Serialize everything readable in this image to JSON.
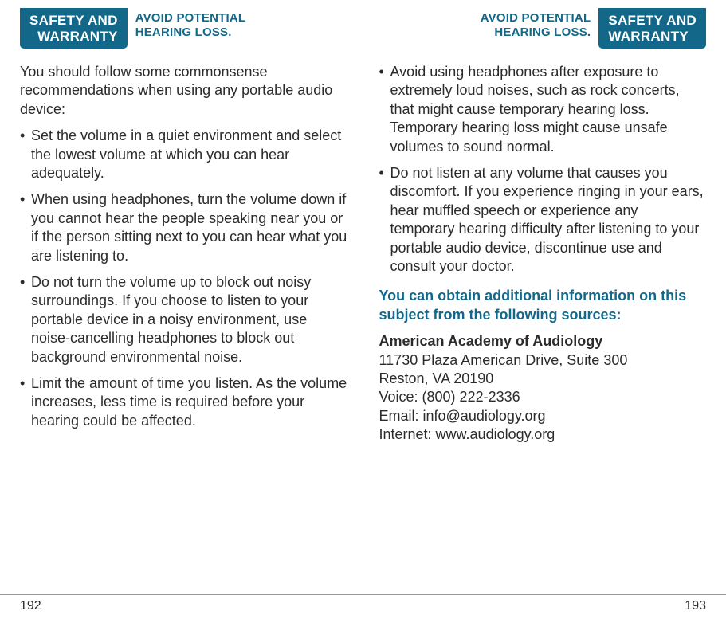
{
  "left": {
    "tab_line1": "SAFETY AND",
    "tab_line2": "WARRANTY",
    "subhead_line1": "AVOID POTENTIAL",
    "subhead_line2": "HEARING LOSS.",
    "intro": "You should follow some commonsense recommendations when using any portable audio device:",
    "bullets": [
      "Set the volume in a quiet environment and select the lowest volume at which you can hear adequately.",
      "When using headphones, turn the volume down if you cannot hear the people speaking near you or if the person sitting next to you can hear what you are listening to.",
      "Do not turn the volume up to block out noisy surroundings. If you choose to listen to your portable device in a noisy environment, use noise-cancelling headphones to block out background environmental noise.",
      "Limit the amount of time you listen. As the volume increases, less time is required before your hearing could be affected."
    ],
    "page_num": "192"
  },
  "right": {
    "subhead_line1": "AVOID POTENTIAL",
    "subhead_line2": "HEARING LOSS.",
    "tab_line1": "SAFETY AND",
    "tab_line2": "WARRANTY",
    "bullets": [
      "Avoid using headphones after exposure to extremely loud noises, such as rock concerts, that might cause temporary hearing loss. Temporary hearing loss might cause unsafe volumes to sound normal.",
      "Do not listen at any volume that causes you discomfort. If you experience ringing in your ears, hear muffled speech or experience any temporary hearing difficulty after listening to your portable audio device, discontinue use and consult your doctor."
    ],
    "callout": "You can obtain additional information on this subject from the following sources:",
    "source": {
      "title": "American Academy of Audiology",
      "addr1": "11730 Plaza American Drive, Suite 300",
      "addr2": "Reston, VA 20190",
      "voice": "Voice: (800) 222-2336",
      "email": "Email: info@audiology.org",
      "internet": "Internet: www.audiology.org"
    },
    "page_num": "193"
  },
  "colors": {
    "tab_bg": "#13688a",
    "tab_text": "#ffffff",
    "accent": "#13688a",
    "body": "#2b2b2b"
  }
}
